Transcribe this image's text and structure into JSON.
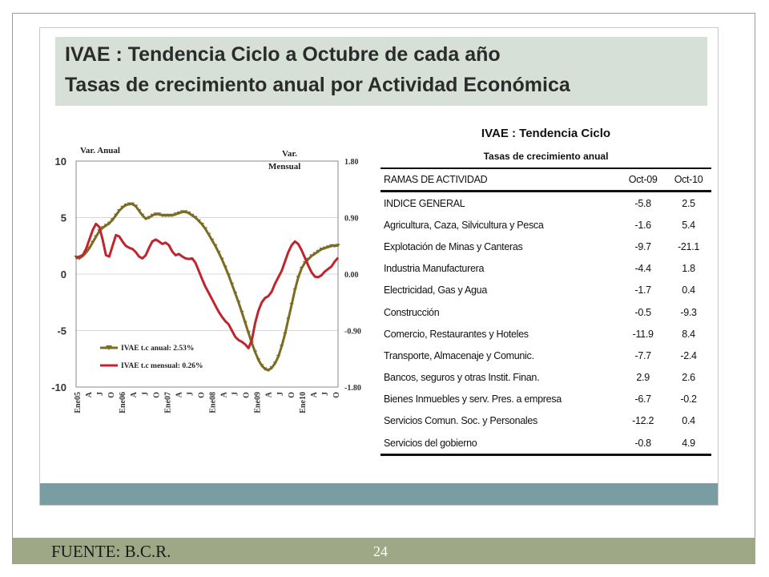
{
  "slide": {
    "title_line1": "IVAE : Tendencia Ciclo a Octubre de cada año",
    "title_line2": "Tasas de crecimiento anual por Actividad Económica",
    "source": "FUENTE: B.C.R.",
    "page_number": "24"
  },
  "chart_data": [
    {
      "type": "line",
      "left_axis_label": "Var. Anual",
      "right_axis_label_1": "Var.",
      "right_axis_label_2": "Mensual",
      "y_ticks_left": [
        "10",
        "5",
        "0",
        "-5",
        "-10"
      ],
      "y_ticks_right": [
        "1.80",
        "0.90",
        "0.00",
        "-0.90",
        "-1.80"
      ],
      "ylim_left": [
        -10,
        10
      ],
      "ylim_right": [
        -1.8,
        1.8
      ],
      "x_ticks": [
        "Ene05",
        "A",
        "J",
        "O",
        "Ene06",
        "A",
        "J",
        "O",
        "Ene07",
        "A",
        "J",
        "O",
        "Ene08",
        "A",
        "J",
        "O",
        "Ene09",
        "A",
        "J",
        "O",
        "Ene10",
        "A",
        "J",
        "O"
      ],
      "series": [
        {
          "name": "IVAE t.c anual: 2.53%",
          "axis": "left",
          "color": "#7b6c22",
          "values": [
            1.5,
            1.4,
            1.6,
            1.9,
            2.3,
            2.8,
            3.3,
            3.8,
            4.1,
            4.3,
            4.5,
            4.8,
            5.2,
            5.6,
            5.9,
            6.1,
            6.2,
            6.2,
            6.0,
            5.6,
            5.2,
            4.9,
            5.0,
            5.2,
            5.3,
            5.3,
            5.2,
            5.2,
            5.2,
            5.2,
            5.3,
            5.4,
            5.5,
            5.5,
            5.4,
            5.2,
            5.0,
            4.7,
            4.4,
            4.0,
            3.5,
            3.0,
            2.5,
            1.9,
            1.3,
            0.6,
            -0.1,
            -0.9,
            -1.7,
            -2.5,
            -3.4,
            -4.3,
            -5.2,
            -6.1,
            -6.9,
            -7.6,
            -8.1,
            -8.4,
            -8.5,
            -8.3,
            -7.9,
            -7.3,
            -6.4,
            -5.3,
            -4.0,
            -2.7,
            -1.4,
            -0.3,
            0.5,
            1.0,
            1.3,
            1.6,
            1.8,
            2.0,
            2.2,
            2.3,
            2.4,
            2.5,
            2.5,
            2.53
          ]
        },
        {
          "name": "IVAE t.c mensual: 0.26%",
          "axis": "right",
          "color": "#c0242c",
          "values": [
            0.25,
            0.28,
            0.3,
            0.4,
            0.55,
            0.7,
            0.8,
            0.75,
            0.55,
            0.3,
            0.28,
            0.45,
            0.62,
            0.6,
            0.52,
            0.45,
            0.42,
            0.4,
            0.35,
            0.28,
            0.25,
            0.3,
            0.42,
            0.52,
            0.55,
            0.52,
            0.48,
            0.5,
            0.46,
            0.36,
            0.3,
            0.32,
            0.28,
            0.25,
            0.24,
            0.25,
            0.18,
            0.05,
            -0.08,
            -0.2,
            -0.3,
            -0.4,
            -0.5,
            -0.6,
            -0.68,
            -0.75,
            -0.8,
            -0.9,
            -1.0,
            -1.05,
            -1.08,
            -1.12,
            -1.18,
            -1.05,
            -0.78,
            -0.58,
            -0.45,
            -0.38,
            -0.35,
            -0.28,
            -0.15,
            -0.05,
            0.05,
            0.2,
            0.35,
            0.46,
            0.52,
            0.48,
            0.38,
            0.26,
            0.14,
            0.03,
            -0.04,
            -0.05,
            -0.02,
            0.04,
            0.08,
            0.12,
            0.2,
            0.26
          ]
        }
      ]
    },
    {
      "type": "table",
      "title": "IVAE : Tendencia Ciclo",
      "subtitle": "Tasas de crecimiento anual",
      "columns": [
        "RAMAS DE ACTIVIDAD",
        "Oct-09",
        "Oct-10"
      ],
      "rows": [
        [
          "INDICE GENERAL",
          "-5.8",
          "2.5"
        ],
        [
          "Agricultura, Caza, Silvicultura y Pesca",
          "-1.6",
          "5.4"
        ],
        [
          "Explotación de Minas y Canteras",
          "-9.7",
          "-21.1"
        ],
        [
          "Industria Manufacturera",
          "-4.4",
          "1.8"
        ],
        [
          "Electricidad, Gas y Agua",
          "-1.7",
          "0.4"
        ],
        [
          "Construcción",
          "-0.5",
          "-9.3"
        ],
        [
          "Comercio, Restaurantes y Hoteles",
          "-11.9",
          "8.4"
        ],
        [
          "Transporte, Almacenaje y Comunic.",
          "-7.7",
          "-2.4"
        ],
        [
          "Bancos, seguros y otras Instit. Finan.",
          "2.9",
          "2.6"
        ],
        [
          "Bienes Inmuebles y serv. Pres. a empresa",
          "-6.7",
          "-0.2"
        ],
        [
          "Servicios Comun. Soc. y Personales",
          "-12.2",
          "0.4"
        ],
        [
          "Servicios del gobierno",
          "-0.8",
          "4.9"
        ]
      ]
    }
  ]
}
